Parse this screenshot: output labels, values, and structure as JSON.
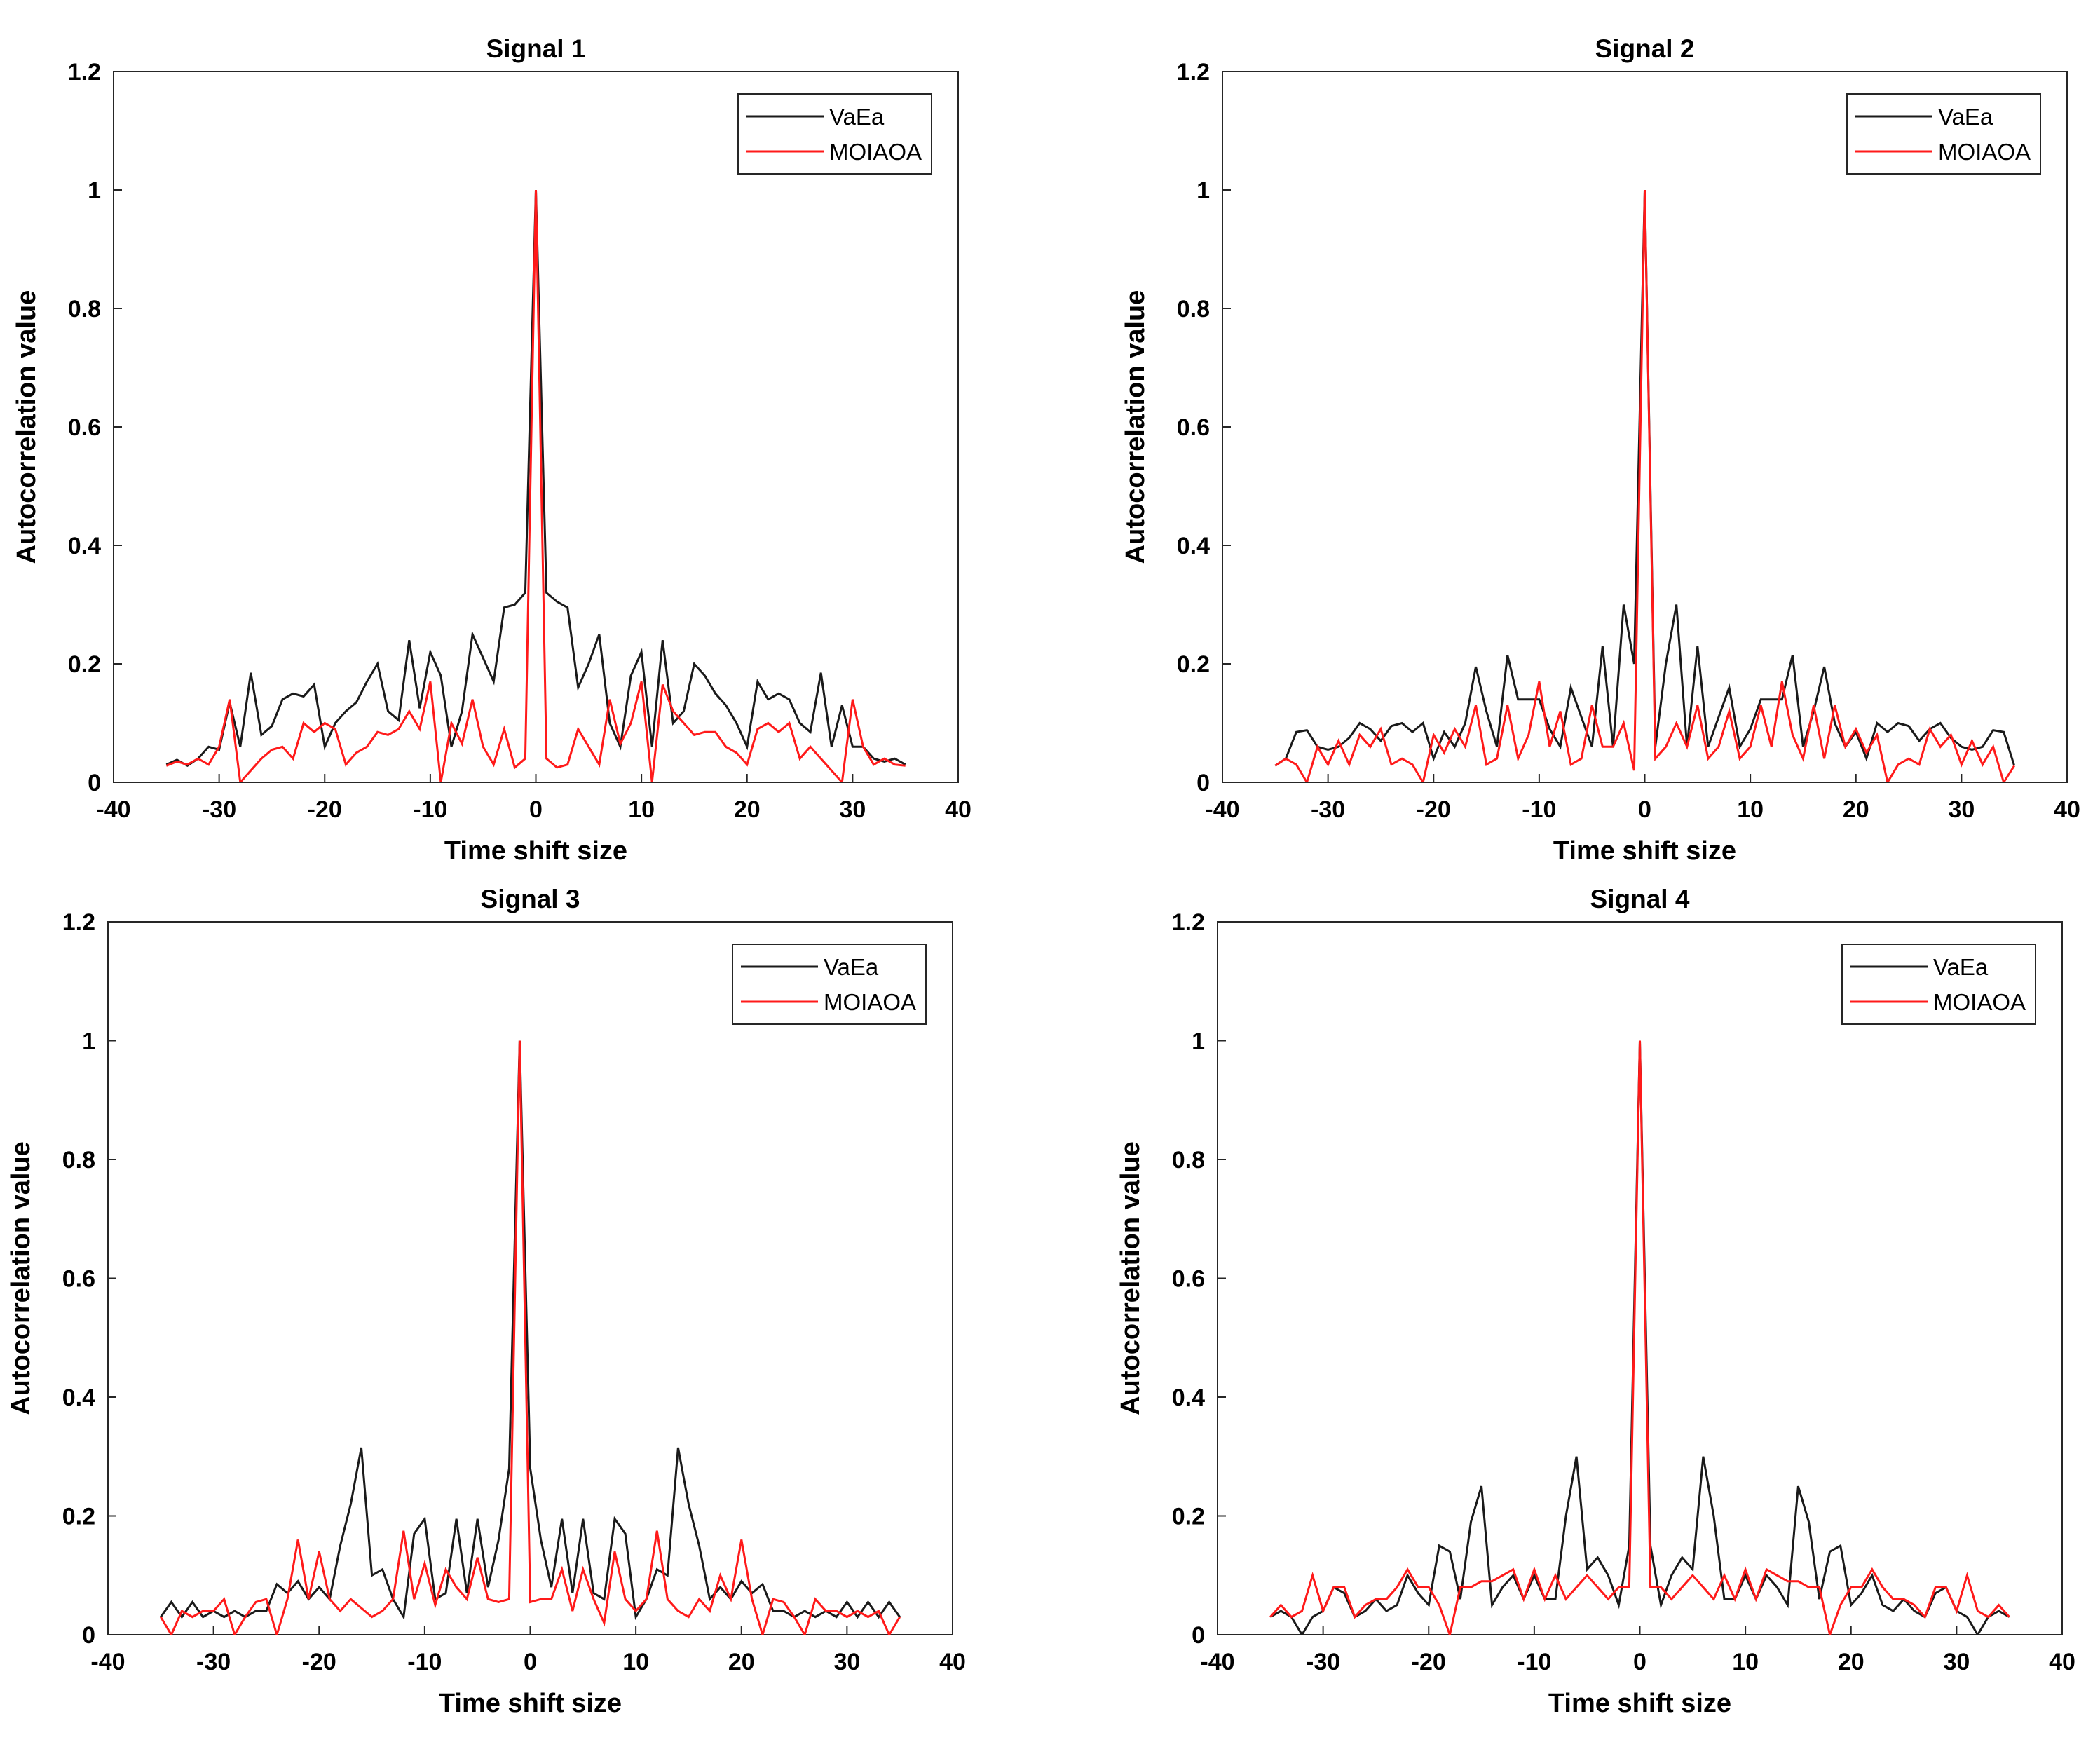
{
  "colors": {
    "VaEa": "#1a1a1a",
    "MOIAOA": "#ff1a1a"
  },
  "chart_data": [
    {
      "type": "line",
      "title": "Signal 1",
      "xlabel": "Time shift size",
      "ylabel": "Autocorrelation value",
      "xlim": [
        -40,
        40
      ],
      "ylim": [
        0,
        1.2
      ],
      "xticks": [
        -40,
        -30,
        -20,
        -10,
        0,
        10,
        20,
        30,
        40
      ],
      "xtick_labels": [
        "-40",
        "-30",
        "-20",
        "-10",
        "0",
        "10",
        "20",
        "30",
        "40"
      ],
      "yticks": [
        0,
        0.2,
        0.4,
        0.6,
        0.8,
        1,
        1.2
      ],
      "ytick_labels": [
        "0",
        "0.2",
        "0.4",
        "0.6",
        "0.8",
        "1",
        "1.2"
      ],
      "legend_position": "top-right",
      "x_start": -35,
      "series": [
        {
          "name": "VaEa",
          "color": "#1a1a1a",
          "values": [
            0.03,
            0.038,
            0.028,
            0.04,
            0.06,
            0.055,
            0.135,
            0.06,
            0.185,
            0.08,
            0.095,
            0.14,
            0.15,
            0.145,
            0.165,
            0.06,
            0.1,
            0.12,
            0.135,
            0.17,
            0.2,
            0.12,
            0.105,
            0.24,
            0.125,
            0.22,
            0.18,
            0.06,
            0.12,
            0.25,
            0.21,
            0.17,
            0.295,
            0.3,
            0.32,
            1.0,
            0.32,
            0.305,
            0.295,
            0.16,
            0.2,
            0.25,
            0.1,
            0.06,
            0.18,
            0.22,
            0.06,
            0.24,
            0.1,
            0.12,
            0.2,
            0.18,
            0.15,
            0.13,
            0.1,
            0.06,
            0.17,
            0.14,
            0.15,
            0.14,
            0.1,
            0.085,
            0.185,
            0.06,
            0.13,
            0.06,
            0.06,
            0.04,
            0.035,
            0.04,
            0.03
          ]
        },
        {
          "name": "MOIAOA",
          "color": "#ff1a1a",
          "values": [
            0.028,
            0.035,
            0.03,
            0.04,
            0.03,
            0.06,
            0.14,
            0.0,
            0.02,
            0.04,
            0.055,
            0.06,
            0.04,
            0.1,
            0.085,
            0.1,
            0.09,
            0.03,
            0.05,
            0.06,
            0.085,
            0.08,
            0.09,
            0.12,
            0.09,
            0.17,
            0.0,
            0.1,
            0.065,
            0.14,
            0.06,
            0.03,
            0.09,
            0.025,
            0.04,
            1.0,
            0.04,
            0.025,
            0.03,
            0.09,
            0.06,
            0.03,
            0.14,
            0.065,
            0.1,
            0.17,
            0.0,
            0.165,
            0.12,
            0.1,
            0.08,
            0.085,
            0.085,
            0.06,
            0.05,
            0.03,
            0.09,
            0.1,
            0.085,
            0.1,
            0.04,
            0.06,
            0.04,
            0.02,
            0.0,
            0.14,
            0.06,
            0.03,
            0.04,
            0.03,
            0.028
          ]
        }
      ]
    },
    {
      "type": "line",
      "title": "Signal 2",
      "xlabel": "Time shift size",
      "ylabel": "Autocorrelation value",
      "xlim": [
        -40,
        40
      ],
      "ylim": [
        0,
        1.2
      ],
      "xticks": [
        -40,
        -30,
        -20,
        -10,
        0,
        10,
        20,
        30,
        40
      ],
      "xtick_labels": [
        "-40",
        "-30",
        "-20",
        "-10",
        "0",
        "10",
        "20",
        "30",
        "40"
      ],
      "yticks": [
        0,
        0.2,
        0.4,
        0.6,
        0.8,
        1,
        1.2
      ],
      "ytick_labels": [
        "0",
        "0.2",
        "0.4",
        "0.6",
        "0.8",
        "1",
        "1.2"
      ],
      "legend_position": "top-right",
      "x_start": -35,
      "series": [
        {
          "name": "VaEa",
          "color": "#1a1a1a",
          "values": [
            0.028,
            0.04,
            0.085,
            0.088,
            0.06,
            0.055,
            0.06,
            0.075,
            0.1,
            0.09,
            0.07,
            0.095,
            0.1,
            0.085,
            0.1,
            0.04,
            0.085,
            0.06,
            0.1,
            0.195,
            0.12,
            0.06,
            0.215,
            0.14,
            0.14,
            0.14,
            0.09,
            0.06,
            0.16,
            0.11,
            0.06,
            0.23,
            0.06,
            0.3,
            0.2,
            1.0,
            0.06,
            0.2,
            0.3,
            0.06,
            0.23,
            0.06,
            0.11,
            0.16,
            0.06,
            0.09,
            0.14,
            0.14,
            0.14,
            0.215,
            0.06,
            0.12,
            0.195,
            0.1,
            0.06,
            0.085,
            0.04,
            0.1,
            0.085,
            0.1,
            0.095,
            0.07,
            0.09,
            0.1,
            0.075,
            0.06,
            0.055,
            0.06,
            0.088,
            0.085,
            0.028
          ]
        },
        {
          "name": "MOIAOA",
          "color": "#ff1a1a",
          "values": [
            0.028,
            0.04,
            0.03,
            0.0,
            0.06,
            0.03,
            0.07,
            0.03,
            0.08,
            0.06,
            0.09,
            0.03,
            0.04,
            0.03,
            0.0,
            0.08,
            0.05,
            0.09,
            0.06,
            0.13,
            0.03,
            0.04,
            0.13,
            0.04,
            0.08,
            0.17,
            0.06,
            0.12,
            0.03,
            0.04,
            0.13,
            0.06,
            0.06,
            0.1,
            0.02,
            1.0,
            0.04,
            0.06,
            0.1,
            0.06,
            0.13,
            0.04,
            0.06,
            0.12,
            0.04,
            0.06,
            0.13,
            0.06,
            0.17,
            0.08,
            0.04,
            0.13,
            0.04,
            0.13,
            0.06,
            0.09,
            0.05,
            0.08,
            0.0,
            0.03,
            0.04,
            0.03,
            0.09,
            0.06,
            0.08,
            0.03,
            0.07,
            0.03,
            0.06,
            0.0,
            0.028
          ]
        }
      ]
    },
    {
      "type": "line",
      "title": "Signal 3",
      "xlabel": "Time shift size",
      "ylabel": "Autocorrelation value",
      "xlim": [
        -40,
        40
      ],
      "ylim": [
        0,
        1.2
      ],
      "xticks": [
        -40,
        -30,
        -20,
        -10,
        0,
        10,
        20,
        30,
        40
      ],
      "xtick_labels": [
        "-40",
        "-30",
        "-20",
        "-10",
        "0",
        "10",
        "20",
        "30",
        "40"
      ],
      "yticks": [
        0,
        0.2,
        0.4,
        0.6,
        0.8,
        1,
        1.2
      ],
      "ytick_labels": [
        "0",
        "0.2",
        "0.4",
        "0.6",
        "0.8",
        "1",
        "1.2"
      ],
      "legend_position": "top-right",
      "x_start": -35,
      "series": [
        {
          "name": "VaEa",
          "color": "#1a1a1a",
          "values": [
            0.03,
            0.055,
            0.03,
            0.055,
            0.03,
            0.04,
            0.03,
            0.04,
            0.03,
            0.04,
            0.04,
            0.085,
            0.07,
            0.09,
            0.06,
            0.08,
            0.06,
            0.15,
            0.22,
            0.315,
            0.1,
            0.11,
            0.06,
            0.03,
            0.17,
            0.195,
            0.06,
            0.07,
            0.195,
            0.07,
            0.195,
            0.08,
            0.16,
            0.28,
            1.0,
            0.28,
            0.16,
            0.08,
            0.195,
            0.07,
            0.195,
            0.07,
            0.06,
            0.195,
            0.17,
            0.03,
            0.06,
            0.11,
            0.1,
            0.315,
            0.22,
            0.15,
            0.06,
            0.08,
            0.06,
            0.09,
            0.07,
            0.085,
            0.04,
            0.04,
            0.03,
            0.04,
            0.03,
            0.04,
            0.03,
            0.055,
            0.03,
            0.055,
            0.03,
            0.055,
            0.03
          ]
        },
        {
          "name": "MOIAOA",
          "color": "#ff1a1a",
          "values": [
            0.03,
            0.0,
            0.04,
            0.03,
            0.04,
            0.04,
            0.06,
            0.0,
            0.03,
            0.055,
            0.06,
            0.0,
            0.06,
            0.16,
            0.06,
            0.14,
            0.06,
            0.04,
            0.06,
            0.045,
            0.03,
            0.04,
            0.06,
            0.175,
            0.06,
            0.12,
            0.05,
            0.11,
            0.08,
            0.06,
            0.13,
            0.06,
            0.055,
            0.06,
            1.0,
            0.055,
            0.06,
            0.06,
            0.11,
            0.04,
            0.11,
            0.06,
            0.02,
            0.14,
            0.06,
            0.04,
            0.06,
            0.175,
            0.06,
            0.04,
            0.03,
            0.06,
            0.04,
            0.1,
            0.06,
            0.16,
            0.06,
            0.0,
            0.06,
            0.055,
            0.03,
            0.0,
            0.06,
            0.04,
            0.04,
            0.03,
            0.04,
            0.03,
            0.04,
            0.0,
            0.03
          ]
        }
      ]
    },
    {
      "type": "line",
      "title": "Signal 4",
      "xlabel": "Time shift size",
      "ylabel": "Autocorrelation value",
      "xlim": [
        -40,
        40
      ],
      "ylim": [
        0,
        1.2
      ],
      "xticks": [
        -40,
        -30,
        -20,
        -10,
        0,
        10,
        20,
        30,
        40
      ],
      "xtick_labels": [
        "-40",
        "-30",
        "-20",
        "-10",
        "0",
        "10",
        "20",
        "30",
        "40"
      ],
      "yticks": [
        0,
        0.2,
        0.4,
        0.6,
        0.8,
        1,
        1.2
      ],
      "ytick_labels": [
        "0",
        "0.2",
        "0.4",
        "0.6",
        "0.8",
        "1",
        "1.2"
      ],
      "legend_position": "top-right",
      "x_start": -35,
      "series": [
        {
          "name": "VaEa",
          "color": "#1a1a1a",
          "values": [
            0.03,
            0.04,
            0.03,
            0.0,
            0.03,
            0.04,
            0.08,
            0.07,
            0.03,
            0.04,
            0.06,
            0.04,
            0.05,
            0.1,
            0.07,
            0.05,
            0.15,
            0.14,
            0.06,
            0.19,
            0.25,
            0.05,
            0.08,
            0.1,
            0.06,
            0.1,
            0.06,
            0.06,
            0.2,
            0.3,
            0.11,
            0.13,
            0.1,
            0.05,
            0.15,
            1.0,
            0.15,
            0.05,
            0.1,
            0.13,
            0.11,
            0.3,
            0.2,
            0.06,
            0.06,
            0.1,
            0.06,
            0.1,
            0.08,
            0.05,
            0.25,
            0.19,
            0.06,
            0.14,
            0.15,
            0.05,
            0.07,
            0.1,
            0.05,
            0.04,
            0.06,
            0.04,
            0.03,
            0.07,
            0.08,
            0.04,
            0.03,
            0.0,
            0.03,
            0.04,
            0.03
          ]
        },
        {
          "name": "MOIAOA",
          "color": "#ff1a1a",
          "values": [
            0.03,
            0.05,
            0.03,
            0.04,
            0.1,
            0.04,
            0.08,
            0.08,
            0.03,
            0.05,
            0.06,
            0.06,
            0.08,
            0.11,
            0.08,
            0.08,
            0.05,
            0.0,
            0.08,
            0.08,
            0.09,
            0.09,
            0.1,
            0.11,
            0.06,
            0.11,
            0.06,
            0.1,
            0.06,
            0.08,
            0.1,
            0.08,
            0.06,
            0.08,
            0.08,
            1.0,
            0.08,
            0.08,
            0.06,
            0.08,
            0.1,
            0.08,
            0.06,
            0.1,
            0.06,
            0.11,
            0.06,
            0.11,
            0.1,
            0.09,
            0.09,
            0.08,
            0.08,
            0.0,
            0.05,
            0.08,
            0.08,
            0.11,
            0.08,
            0.06,
            0.06,
            0.05,
            0.03,
            0.08,
            0.08,
            0.04,
            0.1,
            0.04,
            0.03,
            0.05,
            0.03
          ]
        }
      ]
    }
  ]
}
